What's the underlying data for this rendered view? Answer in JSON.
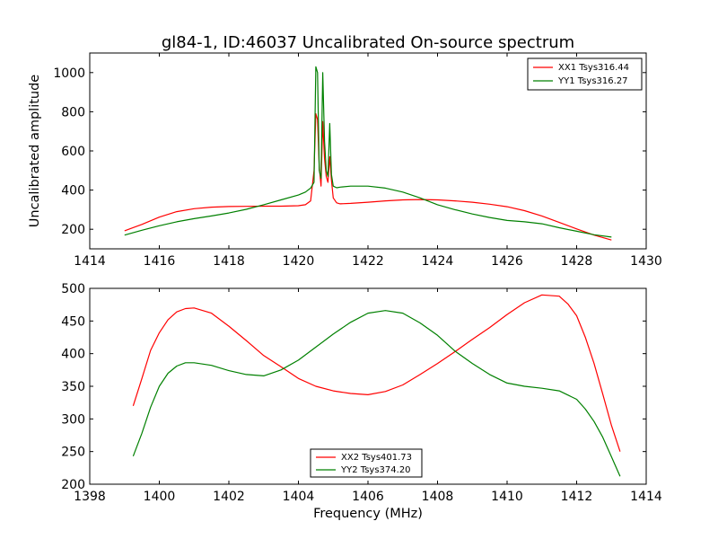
{
  "chart_data": [
    {
      "type": "line",
      "title": "gl84-1, ID:46037 Uncalibrated On-source spectrum",
      "xlabel": "",
      "ylabel": "Uncalibrated amplitude",
      "xlim": [
        1414,
        1430
      ],
      "ylim": [
        100,
        1100
      ],
      "xticks": [
        "1414",
        "1416",
        "1418",
        "1420",
        "1422",
        "1424",
        "1426",
        "1428",
        "1430"
      ],
      "yticks": [
        "200",
        "400",
        "600",
        "800",
        "1000"
      ],
      "legend_position": "top-right",
      "series": [
        {
          "name": "XX1 Tsys316.44",
          "color": "#ff0000",
          "x": [
            1415.0,
            1415.5,
            1416.0,
            1416.5,
            1417.0,
            1417.5,
            1418.0,
            1418.5,
            1419.0,
            1419.5,
            1420.0,
            1420.2,
            1420.35,
            1420.45,
            1420.5,
            1420.55,
            1420.6,
            1420.65,
            1420.7,
            1420.75,
            1420.8,
            1420.85,
            1420.9,
            1420.95,
            1421.0,
            1421.1,
            1421.2,
            1421.5,
            1422.0,
            1422.5,
            1423.0,
            1423.5,
            1424.0,
            1424.5,
            1425.0,
            1425.5,
            1426.0,
            1426.5,
            1427.0,
            1427.5,
            1428.0,
            1428.5,
            1429.0
          ],
          "y": [
            192,
            225,
            262,
            290,
            305,
            313,
            316,
            317,
            318,
            318,
            320,
            325,
            345,
            500,
            790,
            760,
            520,
            420,
            750,
            560,
            470,
            440,
            570,
            450,
            360,
            335,
            330,
            332,
            338,
            345,
            350,
            352,
            350,
            345,
            338,
            328,
            315,
            295,
            268,
            235,
            202,
            170,
            145
          ]
        },
        {
          "name": "YY1 Tsys316.27",
          "color": "#008000",
          "x": [
            1415.0,
            1415.5,
            1416.0,
            1416.5,
            1417.0,
            1417.5,
            1418.0,
            1418.5,
            1419.0,
            1419.5,
            1420.0,
            1420.2,
            1420.35,
            1420.45,
            1420.5,
            1420.55,
            1420.6,
            1420.65,
            1420.7,
            1420.75,
            1420.8,
            1420.85,
            1420.9,
            1420.95,
            1421.0,
            1421.1,
            1421.2,
            1421.5,
            1422.0,
            1422.5,
            1423.0,
            1423.5,
            1424.0,
            1424.5,
            1425.0,
            1425.5,
            1426.0,
            1426.5,
            1427.0,
            1427.5,
            1428.0,
            1428.5,
            1429.0
          ],
          "y": [
            170,
            195,
            218,
            238,
            254,
            268,
            283,
            302,
            325,
            350,
            375,
            390,
            410,
            440,
            1030,
            1000,
            500,
            460,
            1000,
            650,
            500,
            470,
            740,
            480,
            420,
            412,
            415,
            420,
            420,
            410,
            390,
            360,
            325,
            300,
            278,
            260,
            245,
            238,
            228,
            208,
            190,
            172,
            160
          ]
        }
      ]
    },
    {
      "type": "line",
      "title": "",
      "xlabel": "Frequency (MHz)",
      "ylabel": "",
      "xlim": [
        1398,
        1414
      ],
      "ylim": [
        200,
        500
      ],
      "xticks": [
        "1398",
        "1400",
        "1402",
        "1404",
        "1406",
        "1408",
        "1410",
        "1412",
        "1414"
      ],
      "yticks": [
        "200",
        "250",
        "300",
        "350",
        "400",
        "450",
        "500"
      ],
      "legend_position": "lower-center",
      "series": [
        {
          "name": "XX2 Tsys401.73",
          "color": "#ff0000",
          "x": [
            1399.25,
            1399.5,
            1399.75,
            1400.0,
            1400.25,
            1400.5,
            1400.75,
            1401.0,
            1401.5,
            1402.0,
            1402.5,
            1403.0,
            1403.5,
            1404.0,
            1404.5,
            1405.0,
            1405.5,
            1406.0,
            1406.5,
            1407.0,
            1407.5,
            1408.0,
            1408.5,
            1409.0,
            1409.5,
            1410.0,
            1410.5,
            1411.0,
            1411.5,
            1411.75,
            1412.0,
            1412.25,
            1412.5,
            1412.75,
            1413.0,
            1413.25
          ],
          "y": [
            320,
            362,
            405,
            432,
            452,
            464,
            469,
            470,
            462,
            442,
            420,
            397,
            380,
            362,
            350,
            343,
            339,
            337,
            342,
            352,
            368,
            385,
            403,
            422,
            440,
            460,
            478,
            490,
            488,
            476,
            458,
            425,
            385,
            338,
            290,
            250
          ]
        },
        {
          "name": "YY2 Tsys374.20",
          "color": "#008000",
          "x": [
            1399.25,
            1399.5,
            1399.75,
            1400.0,
            1400.25,
            1400.5,
            1400.75,
            1401.0,
            1401.5,
            1402.0,
            1402.5,
            1403.0,
            1403.5,
            1404.0,
            1404.5,
            1405.0,
            1405.5,
            1406.0,
            1406.5,
            1407.0,
            1407.5,
            1408.0,
            1408.5,
            1409.0,
            1409.5,
            1410.0,
            1410.5,
            1411.0,
            1411.5,
            1412.0,
            1412.25,
            1412.5,
            1412.75,
            1413.0,
            1413.25
          ],
          "y": [
            243,
            278,
            318,
            350,
            370,
            381,
            386,
            386,
            382,
            374,
            368,
            366,
            375,
            390,
            410,
            430,
            448,
            462,
            466,
            462,
            447,
            428,
            404,
            385,
            368,
            355,
            350,
            347,
            343,
            330,
            315,
            296,
            272,
            242,
            212
          ]
        }
      ]
    }
  ]
}
